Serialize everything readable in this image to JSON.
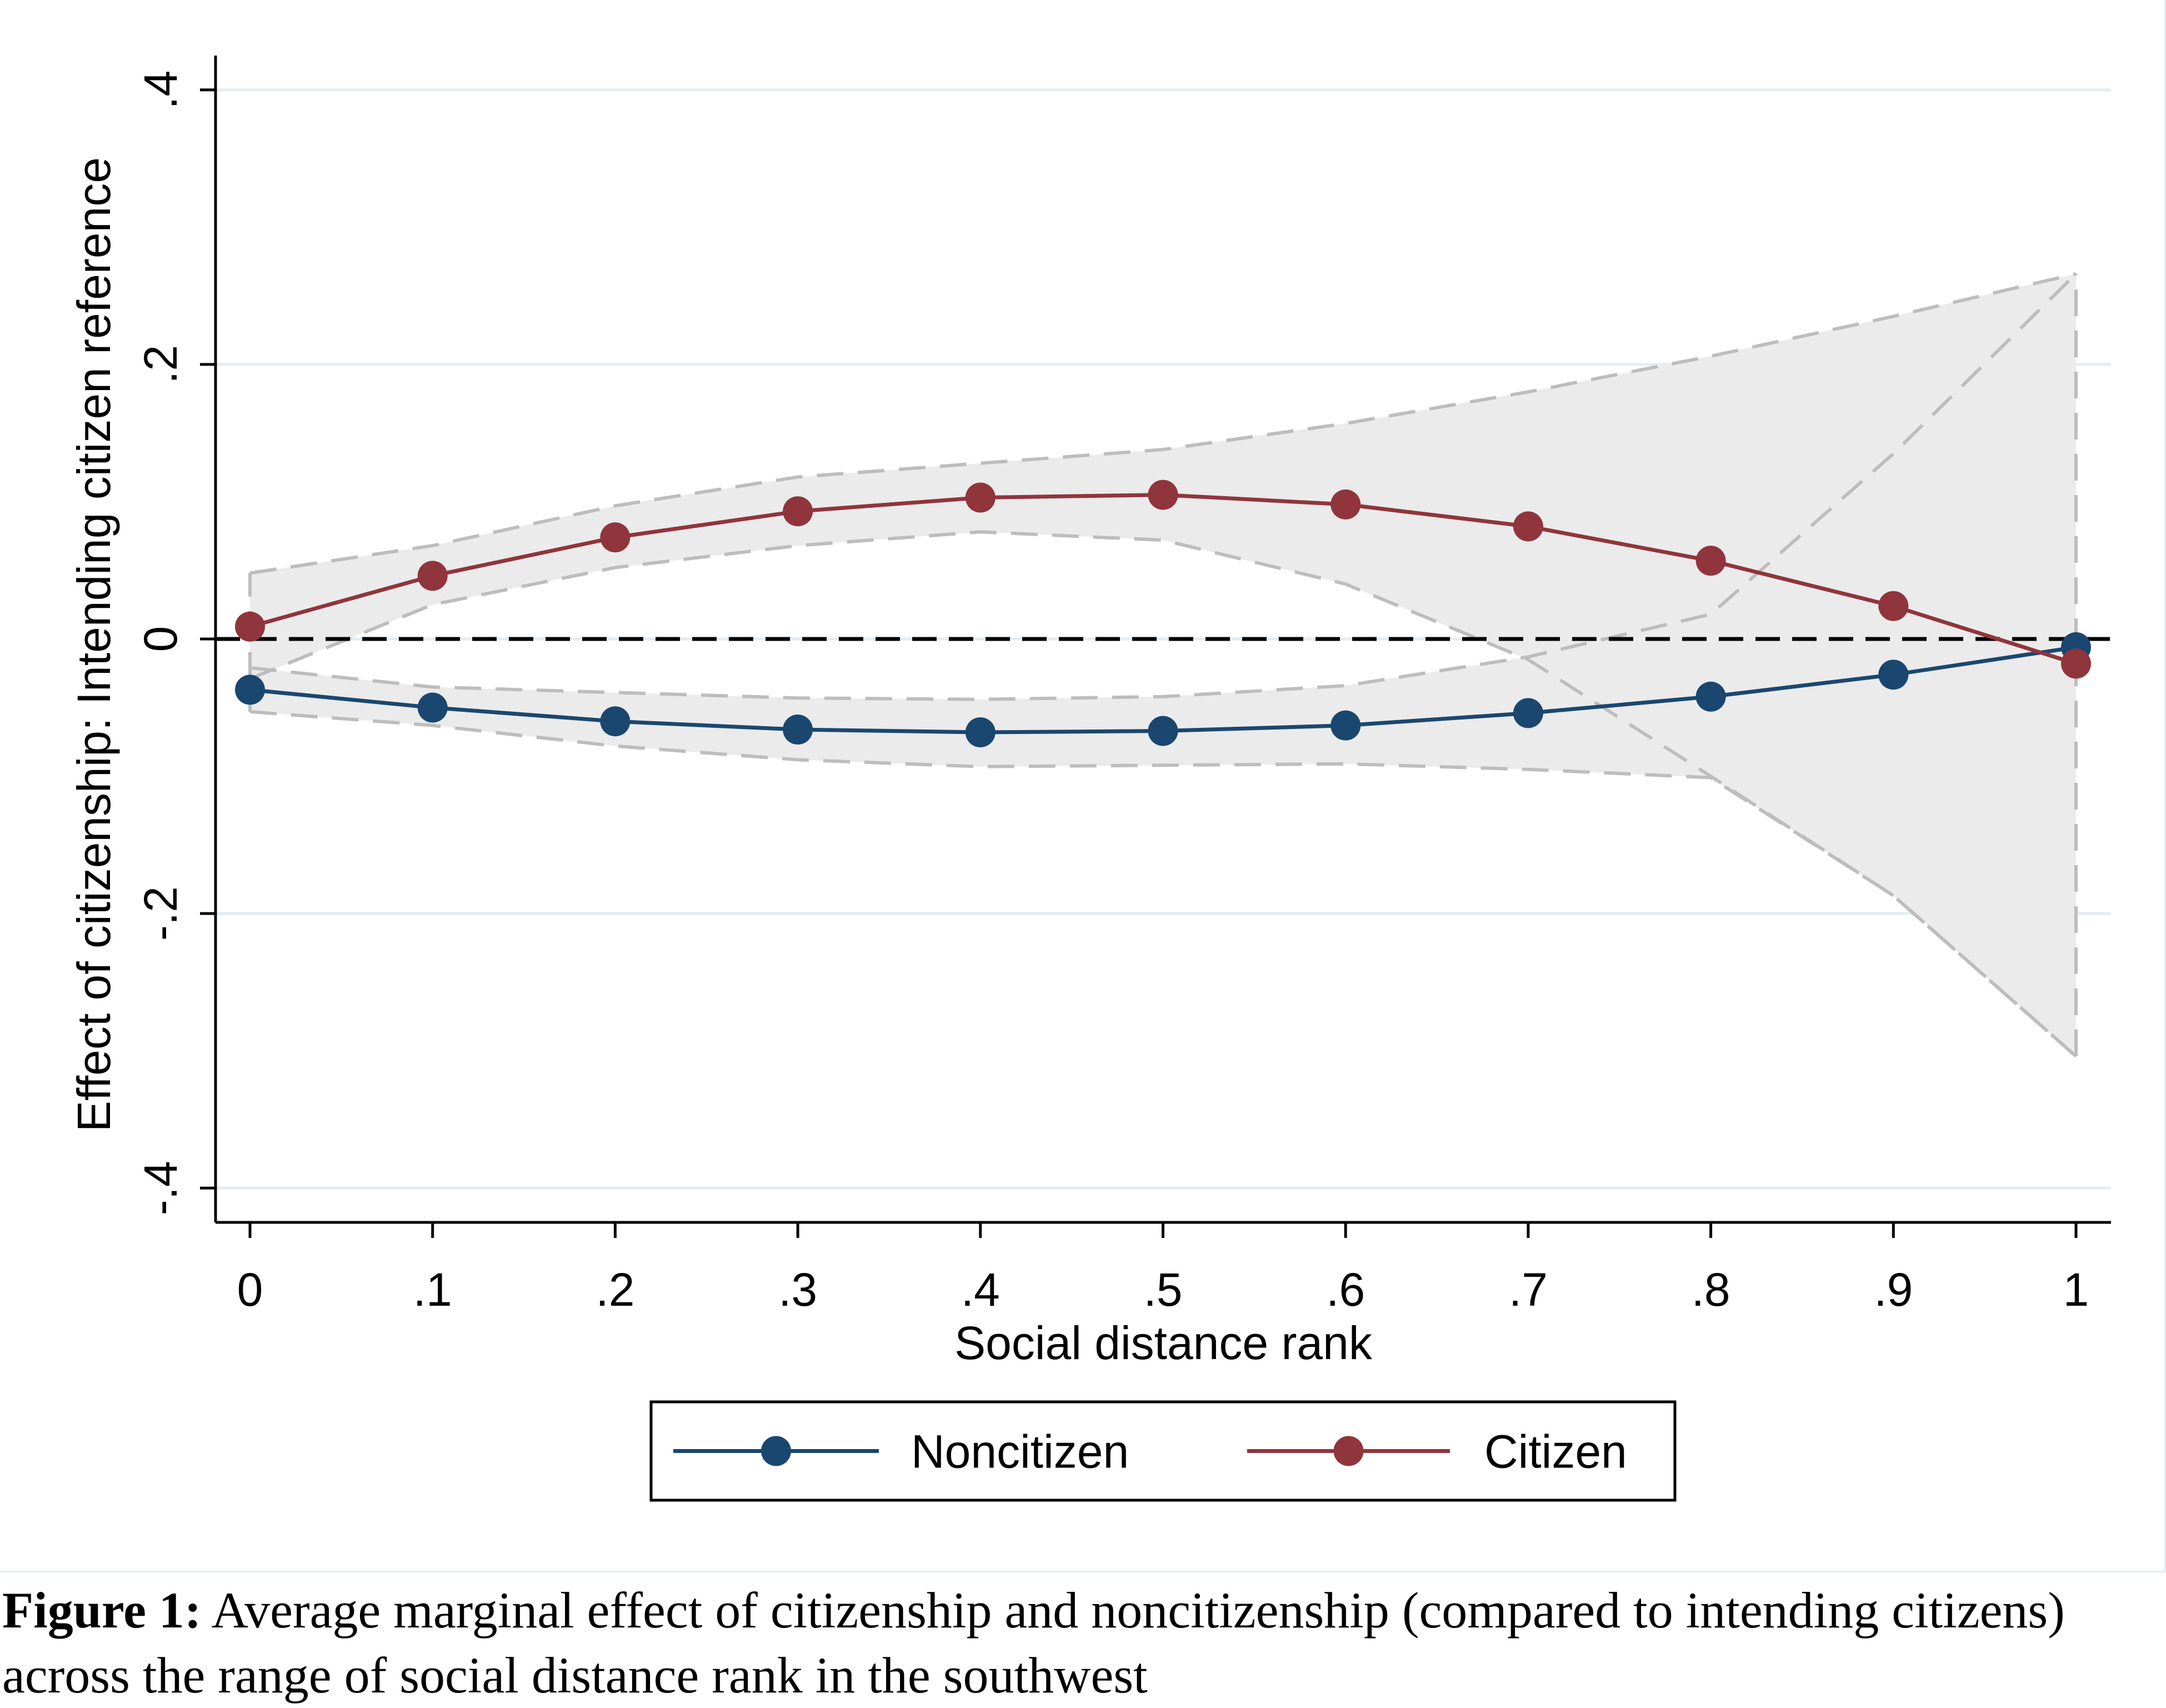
{
  "chart_data": {
    "type": "line",
    "title": "",
    "xlabel": "Social distance rank",
    "ylabel": "Effect of citizenship: Intending citizen reference",
    "x": [
      0,
      0.1,
      0.2,
      0.3,
      0.4,
      0.5,
      0.6,
      0.7,
      0.8,
      0.9,
      1
    ],
    "xticks": [
      0,
      0.1,
      0.2,
      0.3,
      0.4,
      0.5,
      0.6,
      0.7,
      0.8,
      0.9,
      1
    ],
    "xtick_labels": [
      "0",
      ".1",
      ".2",
      ".3",
      ".4",
      ".5",
      ".6",
      ".7",
      ".8",
      ".9",
      "1"
    ],
    "xlim": [
      -0.02,
      1.02
    ],
    "yticks": [
      -0.4,
      -0.2,
      0,
      0.2,
      0.4
    ],
    "ytick_labels": [
      "-.4",
      "-.2",
      "0",
      ".2",
      ".4"
    ],
    "ylim": [
      -0.425,
      0.425
    ],
    "reference_line": 0,
    "legend_position": "bottom-center",
    "series": [
      {
        "name": "Noncitizen",
        "color": "#1a476f",
        "values": [
          -0.037,
          -0.05,
          -0.06,
          -0.066,
          -0.068,
          -0.067,
          -0.063,
          -0.054,
          -0.042,
          -0.026,
          -0.006
        ],
        "ci_lower": [
          -0.053,
          -0.063,
          -0.078,
          -0.088,
          -0.093,
          -0.092,
          -0.091,
          -0.095,
          -0.101,
          -0.187,
          -0.304
        ],
        "ci_upper": [
          -0.021,
          -0.035,
          -0.039,
          -0.043,
          -0.044,
          -0.042,
          -0.034,
          -0.013,
          0.018,
          0.135,
          0.266
        ]
      },
      {
        "name": "Citizen",
        "color": "#90353b",
        "values": [
          0.009,
          0.046,
          0.074,
          0.093,
          0.103,
          0.105,
          0.098,
          0.082,
          0.057,
          0.024,
          -0.018
        ],
        "ci_lower": [
          -0.029,
          0.025,
          0.052,
          0.068,
          0.078,
          0.072,
          0.04,
          -0.015,
          -0.1,
          -0.187,
          -0.304
        ],
        "ci_upper": [
          0.048,
          0.068,
          0.097,
          0.118,
          0.128,
          0.138,
          0.157,
          0.18,
          0.206,
          0.235,
          0.266
        ]
      }
    ],
    "colors": {
      "ci_fill": "#ebebeb",
      "ci_stroke": "#bdbdbd",
      "gridline": "#e4ecf2"
    }
  },
  "caption": {
    "label": "Figure 1:",
    "text": "Average marginal effect of citizenship and noncitizenship (compared to intending citizens) across the range of social distance rank in the southwest"
  }
}
